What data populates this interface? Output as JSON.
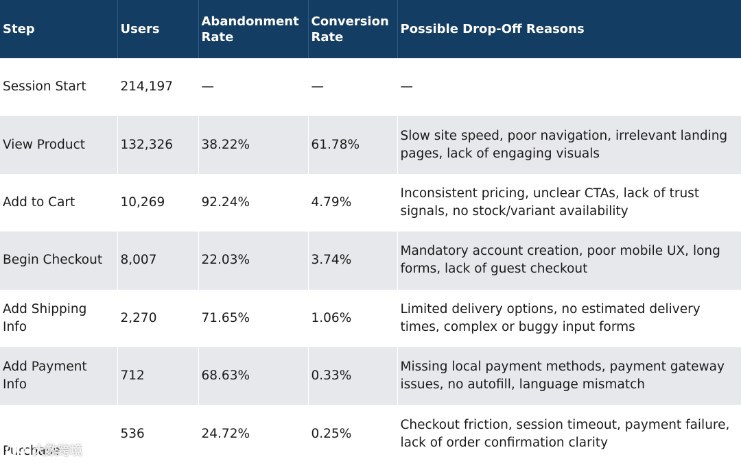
{
  "table": {
    "headers": [
      "Step",
      "Users",
      "Abandonment Rate",
      "Conversion Rate",
      "Possible Drop-Off Reasons"
    ],
    "rows": [
      {
        "step": "Session Start",
        "users": "214,197",
        "abandonment": "—",
        "conversion": "—",
        "reasons": "—"
      },
      {
        "step": "View Product",
        "users": "132,326",
        "abandonment": "38.22%",
        "conversion": "61.78%",
        "reasons": "Slow site speed, poor navigation, irrelevant landing pages, lack of engaging visuals"
      },
      {
        "step": "Add to Cart",
        "users": "10,269",
        "abandonment": "92.24%",
        "conversion": "4.79%",
        "reasons": "Inconsistent pricing, unclear CTAs, lack of trust signals, no stock/variant availability"
      },
      {
        "step": "Begin Checkout",
        "users": "8,007",
        "abandonment": "22.03%",
        "conversion": "3.74%",
        "reasons": "Mandatory account creation, poor mobile UX, long forms, lack of guest checkout"
      },
      {
        "step": "Add Shipping Info",
        "users": "2,270",
        "abandonment": "71.65%",
        "conversion": "1.06%",
        "reasons": "Limited delivery options, no estimated delivery times, complex or buggy input forms"
      },
      {
        "step": "Add Payment Info",
        "users": "712",
        "abandonment": "68.63%",
        "conversion": "0.33%",
        "reasons": "Missing local payment methods, payment gateway issues, no autofill, language mismatch"
      },
      {
        "step": "Purchase",
        "users": "536",
        "abandonment": "24.72%",
        "conversion": "0.25%",
        "reasons": "Checkout friction, session timeout, payment failure, lack of order confirmation clarity"
      }
    ]
  },
  "watermark": {
    "text": "大数跨境"
  }
}
